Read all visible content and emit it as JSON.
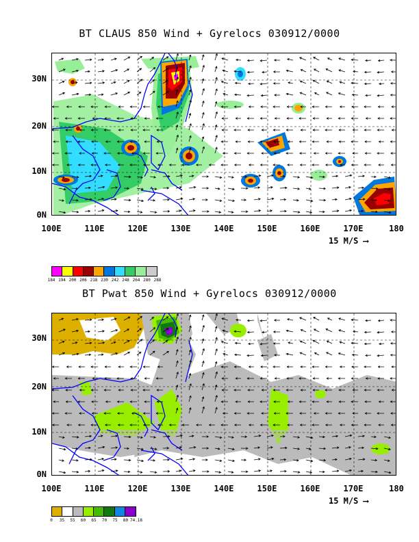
{
  "top": {
    "title": "BT CLAUS 850 Wind + Gyrelocs 030912/0000",
    "legend_colors": [
      "#ff00ff",
      "#ffff00",
      "#ff0000",
      "#990000",
      "#ffa500",
      "#0077dd",
      "#33ddff",
      "#33cc66",
      "#99ee99",
      "#cccccc"
    ],
    "legend_values": [
      "184",
      "194",
      "200",
      "206",
      "218",
      "230",
      "242",
      "248",
      "264",
      "280",
      "288"
    ]
  },
  "bottom": {
    "title": "BT Pwat 850 Wind + Gyrelocs 030912/0000",
    "legend_colors": [
      "#ddb000",
      "#ffffff",
      "#bbbbbb",
      "#99ee00",
      "#44bb00",
      "#117711",
      "#1188dd",
      "#8800cc"
    ],
    "legend_values": [
      "0",
      "35",
      "55",
      "60",
      "65",
      "70",
      "75",
      "80",
      "74.18"
    ]
  },
  "axes": {
    "lat_labels": [
      "0N",
      "10N",
      "20N",
      "30N"
    ],
    "lon_labels": [
      "100E",
      "110E",
      "120E",
      "130E",
      "140E",
      "150E",
      "160E",
      "170E",
      "180"
    ]
  },
  "wind_scale": {
    "label": "15 M/S",
    "arrow": "⟶"
  },
  "colors": {
    "coastline": "#0000ff",
    "arrows": "#000000"
  }
}
